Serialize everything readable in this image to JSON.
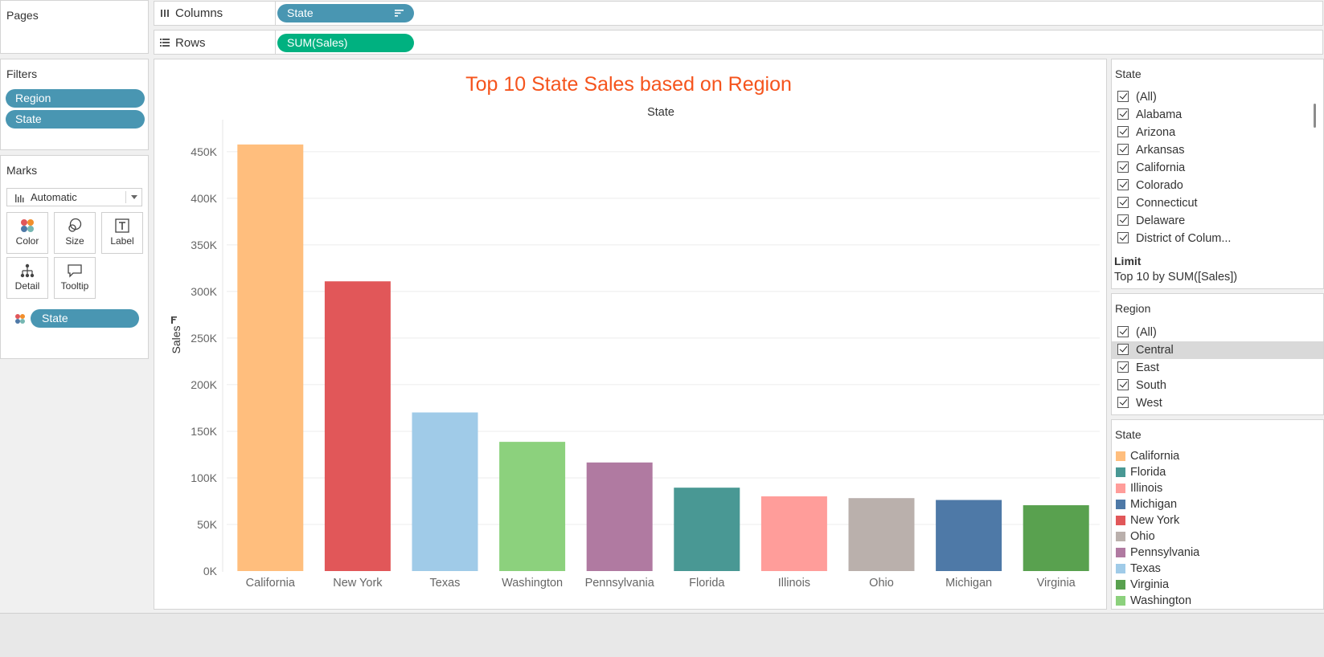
{
  "shelves": {
    "pages_title": "Pages",
    "columns_label": "Columns",
    "columns_pill": "State",
    "rows_label": "Rows",
    "rows_pill": "SUM(Sales)"
  },
  "filters": {
    "title": "Filters",
    "items": [
      "Region",
      "State"
    ]
  },
  "marks": {
    "title": "Marks",
    "mark_type": "Automatic",
    "buttons": [
      "Color",
      "Size",
      "Label",
      "Detail",
      "Tooltip"
    ],
    "field_pill": "State"
  },
  "state_filter": {
    "title": "State",
    "items": [
      "(All)",
      "Alabama",
      "Arizona",
      "Arkansas",
      "California",
      "Colorado",
      "Connecticut",
      "Delaware",
      "District of Colum..."
    ],
    "limit_label": "Limit",
    "limit_value": "Top 10 by SUM([Sales])"
  },
  "region_filter": {
    "title": "Region",
    "items": [
      "(All)",
      "Central",
      "East",
      "South",
      "West"
    ],
    "highlighted": "Central"
  },
  "legend": {
    "title": "State",
    "items": [
      {
        "label": "California",
        "color": "#ffbe7d"
      },
      {
        "label": "Florida",
        "color": "#499894"
      },
      {
        "label": "Illinois",
        "color": "#ff9d9a"
      },
      {
        "label": "Michigan",
        "color": "#4e79a7"
      },
      {
        "label": "New York",
        "color": "#e15759"
      },
      {
        "label": "Ohio",
        "color": "#bab0ac"
      },
      {
        "label": "Pennsylvania",
        "color": "#b07aa1"
      },
      {
        "label": "Texas",
        "color": "#a0cbe8"
      },
      {
        "label": "Virginia",
        "color": "#59a14f"
      },
      {
        "label": "Washington",
        "color": "#8cd17d"
      }
    ]
  },
  "chart_data": {
    "type": "bar",
    "title": "Top 10 State Sales based on Region",
    "column_header": "State",
    "xlabel": "",
    "ylabel": "Sales",
    "ylim": [
      0,
      480000
    ],
    "yticks": [
      0,
      50000,
      100000,
      150000,
      200000,
      250000,
      300000,
      350000,
      400000,
      450000
    ],
    "ytick_labels": [
      "0K",
      "50K",
      "100K",
      "150K",
      "200K",
      "250K",
      "300K",
      "350K",
      "400K",
      "450K"
    ],
    "grid": true,
    "categories": [
      "California",
      "New York",
      "Texas",
      "Washington",
      "Pennsylvania",
      "Florida",
      "Illinois",
      "Ohio",
      "Michigan",
      "Virginia"
    ],
    "values": [
      457688,
      310876,
      170188,
      138641,
      116512,
      89474,
      80166,
      78258,
      76270,
      70637
    ],
    "colors": [
      "#ffbe7d",
      "#e15759",
      "#a0cbe8",
      "#8cd17d",
      "#b07aa1",
      "#499894",
      "#ff9d9a",
      "#bab0ac",
      "#4e79a7",
      "#59a14f"
    ],
    "title_color": "#f5541d"
  }
}
